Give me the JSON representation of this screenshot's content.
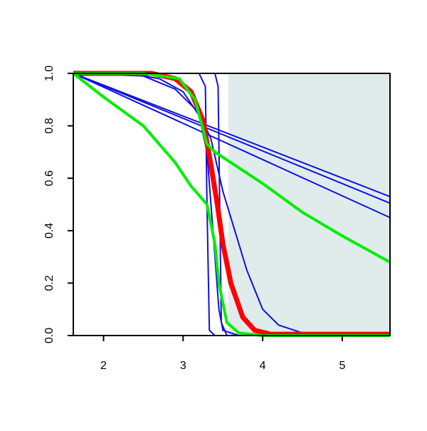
{
  "chart_data": {
    "type": "line",
    "xlim": [
      1.62,
      5.6
    ],
    "ylim": [
      0,
      1
    ],
    "xticks": [
      2,
      3,
      4,
      5
    ],
    "yticks": [
      {
        "value": 0,
        "label": "0.0"
      },
      0.2,
      0.4,
      0.6,
      0.8,
      {
        "value": 1,
        "label": "1.0"
      }
    ],
    "shaded_region": {
      "x": [
        3.57,
        5.6
      ],
      "color": "#dfeceb"
    },
    "series": [
      {
        "color": "#1010e0",
        "width": 2,
        "x": [
          1.62,
          5.6
        ],
        "values": [
          1,
          0.53
        ]
      },
      {
        "color": "#1010e0",
        "width": 2,
        "x": [
          1.62,
          5.6
        ],
        "values": [
          1,
          0.505
        ]
      },
      {
        "color": "#1010e0",
        "width": 2,
        "x": [
          1.62,
          5.6
        ],
        "values": [
          1,
          0.45
        ]
      },
      {
        "color": "#1010e0",
        "width": 2,
        "x": [
          1.62,
          2.5,
          2.9,
          3.2,
          3.35,
          3.5,
          3.65,
          3.8,
          4.0,
          4.2,
          4.5,
          4.7,
          5.6
        ],
        "values": [
          1,
          0.99,
          0.94,
          0.85,
          0.75,
          0.55,
          0.4,
          0.25,
          0.1,
          0.04,
          0.01,
          0,
          0
        ]
      },
      {
        "color": "#1010e0",
        "width": 2,
        "x": [
          1.62,
          2.3,
          2.7,
          3.0,
          3.2,
          3.3,
          3.35,
          3.4,
          3.45,
          3.5,
          3.7,
          5.6
        ],
        "values": [
          1,
          1,
          0.98,
          0.93,
          0.84,
          0.7,
          0.5,
          0.3,
          0.1,
          0.02,
          0,
          0
        ]
      },
      {
        "color": "#1010e0",
        "width": 2,
        "x": [
          1.62,
          3.2,
          3.28,
          3.3,
          3.33,
          3.4,
          5.6
        ],
        "values": [
          1,
          1,
          0.95,
          0.5,
          0.02,
          0,
          0
        ]
      },
      {
        "color": "#1010e0",
        "width": 2,
        "x": [
          1.62,
          3.4,
          3.44,
          3.46,
          3.48,
          3.55,
          5.6
        ],
        "values": [
          1,
          1,
          0.95,
          0.5,
          0.05,
          0,
          0
        ]
      },
      {
        "color": "#ff0000",
        "width": 7,
        "x": [
          1.62,
          2.6,
          2.9,
          3.1,
          3.25,
          3.35,
          3.43,
          3.5,
          3.6,
          3.75,
          3.9,
          4.1,
          5.6
        ],
        "values": [
          1,
          1,
          0.98,
          0.93,
          0.82,
          0.65,
          0.5,
          0.35,
          0.2,
          0.07,
          0.02,
          0.005,
          0.005
        ]
      },
      {
        "color": "#00ee00",
        "width": 4,
        "x": [
          1.62,
          2.0,
          2.5,
          2.9,
          3.1,
          3.3,
          3.4,
          3.45,
          3.55,
          3.7,
          4.0,
          5.6
        ],
        "values": [
          1,
          0.91,
          0.8,
          0.66,
          0.57,
          0.5,
          0.35,
          0.2,
          0.05,
          0.01,
          0,
          0
        ]
      },
      {
        "color": "#00ee00",
        "width": 4,
        "x": [
          1.62,
          2.5,
          2.95,
          3.15,
          3.3,
          3.4,
          4.0,
          4.5,
          5.0,
          5.6
        ],
        "values": [
          1,
          1,
          0.98,
          0.9,
          0.73,
          0.7,
          0.58,
          0.47,
          0.38,
          0.28
        ]
      }
    ]
  }
}
